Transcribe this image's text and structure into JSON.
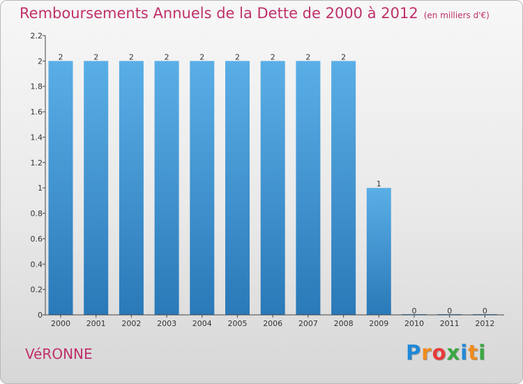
{
  "title": "Remboursements Annuels de la Dette de 2000 à 2012",
  "unit_note": "(en milliers d'€)",
  "commune": "VéRONNE",
  "logo": {
    "letters": [
      "P",
      "r",
      "o",
      "x",
      "i",
      "t",
      "i"
    ],
    "colors": [
      "#1f88d8",
      "#f08c1e",
      "#e83a3a",
      "#3aa843",
      "#1f88d8",
      "#f08c1e",
      "#3aa843"
    ]
  },
  "colors": {
    "title": "#c0306a",
    "bar_light": "#5aaee6",
    "bar_dark": "#2a79b8",
    "axis": "#444444"
  },
  "chart_data": {
    "type": "bar",
    "categories": [
      "2000",
      "2001",
      "2002",
      "2003",
      "2004",
      "2005",
      "2006",
      "2007",
      "2008",
      "2009",
      "2010",
      "2011",
      "2012"
    ],
    "values": [
      2,
      2,
      2,
      2,
      2,
      2,
      2,
      2,
      2,
      1,
      0,
      0,
      0
    ],
    "data_labels": [
      "2",
      "2",
      "2",
      "2",
      "2",
      "2",
      "2",
      "2",
      "2",
      "1",
      "0",
      "0",
      "0"
    ],
    "title": "Remboursements Annuels de la Dette de 2000 à 2012",
    "xlabel": "",
    "ylabel": "",
    "ylim": [
      0,
      2.2
    ],
    "yticks": [
      0,
      0.2,
      0.4,
      0.6,
      0.8,
      1,
      1.2,
      1.4,
      1.6,
      1.8,
      2,
      2.2
    ],
    "ytick_labels": [
      "0",
      "0.2",
      "0.4",
      "0.6",
      "0.8",
      "1",
      "1.2",
      "1.4",
      "1.6",
      "1.8",
      "2",
      "2.2"
    ],
    "grid": false,
    "legend": "none"
  }
}
